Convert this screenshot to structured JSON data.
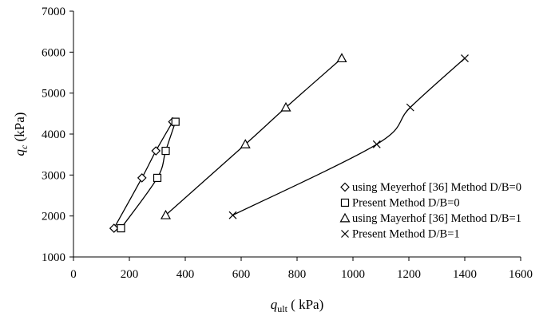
{
  "chart_data": {
    "type": "scatter",
    "xlabel": {
      "main": "q",
      "sub": "ult",
      "units": " ( kPa)"
    },
    "ylabel": {
      "main": "q",
      "sub": "c",
      "units": " (kPa)"
    },
    "xlim": [
      0,
      1600
    ],
    "ylim": [
      1000,
      7000
    ],
    "xticks": [
      "0",
      "200",
      "400",
      "600",
      "800",
      "1000",
      "1200",
      "1400",
      "1600"
    ],
    "yticks": [
      "1000",
      "2000",
      "3000",
      "4000",
      "5000",
      "6000",
      "7000"
    ],
    "grid": false,
    "legend_position": "bottom-right",
    "series": [
      {
        "name": "using Meyerhof [36] Method D/B=0",
        "marker": "diamond",
        "x": [
          145,
          245,
          295,
          355
        ],
        "y": [
          1700,
          2930,
          3590,
          4300
        ]
      },
      {
        "name": "Present Method D/B=0",
        "marker": "square",
        "x": [
          170,
          300,
          330,
          365
        ],
        "y": [
          1700,
          2930,
          3590,
          4300
        ]
      },
      {
        "name": "using Mayerhof [36] Method D/B=1",
        "marker": "triangle",
        "x": [
          330,
          615,
          760,
          960
        ],
        "y": [
          2020,
          3750,
          4650,
          5850
        ]
      },
      {
        "name": "Present Method D/B=1",
        "marker": "x",
        "x": [
          570,
          1085,
          1205,
          1400
        ],
        "y": [
          2020,
          3750,
          4650,
          5850
        ]
      }
    ]
  }
}
